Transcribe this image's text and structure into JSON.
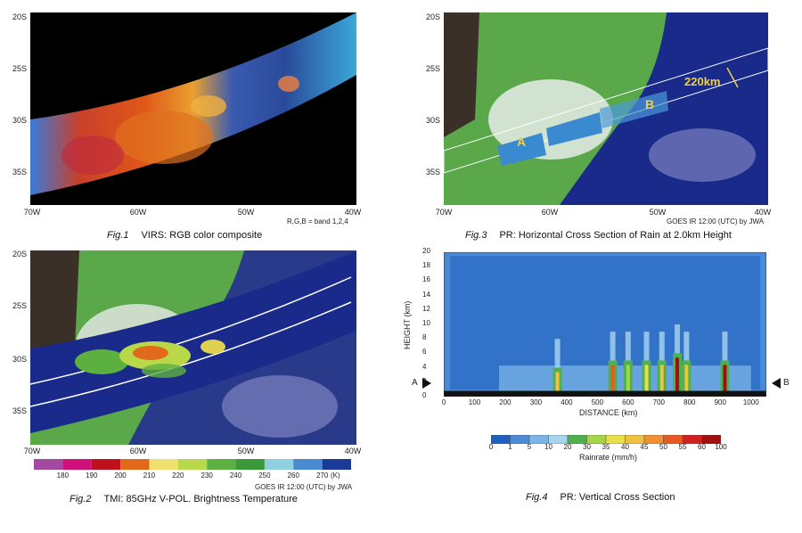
{
  "fig1": {
    "fig_label": "Fig.1",
    "caption": "VIRS: RGB color composite",
    "bands_note": "R,G,B = band 1,2,4",
    "lat_labels": [
      "20S",
      "25S",
      "30S",
      "35S"
    ],
    "lon_labels": [
      "70W",
      "60W",
      "50W",
      "40W"
    ]
  },
  "fig2": {
    "fig_label": "Fig.2",
    "caption": "TMI: 85GHz V-POL. Brightness Temperature",
    "lat_labels": [
      "20S",
      "25S",
      "30S",
      "35S"
    ],
    "lon_labels": [
      "70W",
      "60W",
      "50W",
      "40W"
    ],
    "credit": "GOES IR 12:00 (UTC) by JWA",
    "colorbar": {
      "labels": [
        "180",
        "190",
        "200",
        "210",
        "220",
        "230",
        "240",
        "250",
        "260",
        "270"
      ],
      "unit": "(K)",
      "colors": [
        "#a14aa0",
        "#d0107a",
        "#c0101e",
        "#e06a1a",
        "#f0e070",
        "#b8d84a",
        "#5cb040",
        "#3a9a3a",
        "#8ed0e0",
        "#4a8ad0",
        "#1a3a9a"
      ]
    }
  },
  "fig3": {
    "fig_label": "Fig.3",
    "caption": "PR: Horizontal Cross Section of Rain at 2.0km Height",
    "lat_labels": [
      "20S",
      "25S",
      "30S",
      "35S"
    ],
    "lon_labels": [
      "70W",
      "60W",
      "50W",
      "40W"
    ],
    "credit": "GOES IR 12:00 (UTC) by JWA",
    "swath_width": "220km",
    "point_a": "A",
    "point_b": "B"
  },
  "fig4": {
    "fig_label": "Fig.4",
    "caption": "PR: Vertical Cross Section",
    "marker_a": "A",
    "marker_b": "B",
    "colorbar": {
      "labels": [
        "0",
        "1",
        "5",
        "10",
        "20",
        "30",
        "35",
        "40",
        "45",
        "50",
        "55",
        "60",
        "100"
      ],
      "unit_label": "Rainrate (mm/h)",
      "colors": [
        "#1f5fbf",
        "#4a8ad6",
        "#7ab4e6",
        "#a8d4ee",
        "#4fb04f",
        "#a8d448",
        "#e8e048",
        "#f0c040",
        "#f09030",
        "#e85a20",
        "#d02020",
        "#a01010"
      ]
    },
    "chart_data": {
      "type": "heatmap",
      "xlabel": "DISTANCE (km)",
      "ylabel": "HEIGHT (km)",
      "xlim": [
        0,
        1050
      ],
      "ylim": [
        0,
        20
      ],
      "x_ticks": [
        0,
        100,
        200,
        300,
        400,
        500,
        600,
        700,
        800,
        900,
        1000
      ],
      "y_ticks": [
        0,
        2,
        4,
        6,
        8,
        10,
        12,
        14,
        16,
        18,
        20
      ],
      "rain_columns": [
        {
          "x": 370,
          "top_km": 4,
          "peak": 40
        },
        {
          "x": 550,
          "top_km": 5,
          "peak": 50
        },
        {
          "x": 600,
          "top_km": 5,
          "peak": 30
        },
        {
          "x": 660,
          "top_km": 5,
          "peak": 35
        },
        {
          "x": 710,
          "top_km": 5,
          "peak": 40
        },
        {
          "x": 760,
          "top_km": 6,
          "peak": 60
        },
        {
          "x": 790,
          "top_km": 5,
          "peak": 40
        },
        {
          "x": 915,
          "top_km": 5,
          "peak": 60
        }
      ]
    }
  }
}
